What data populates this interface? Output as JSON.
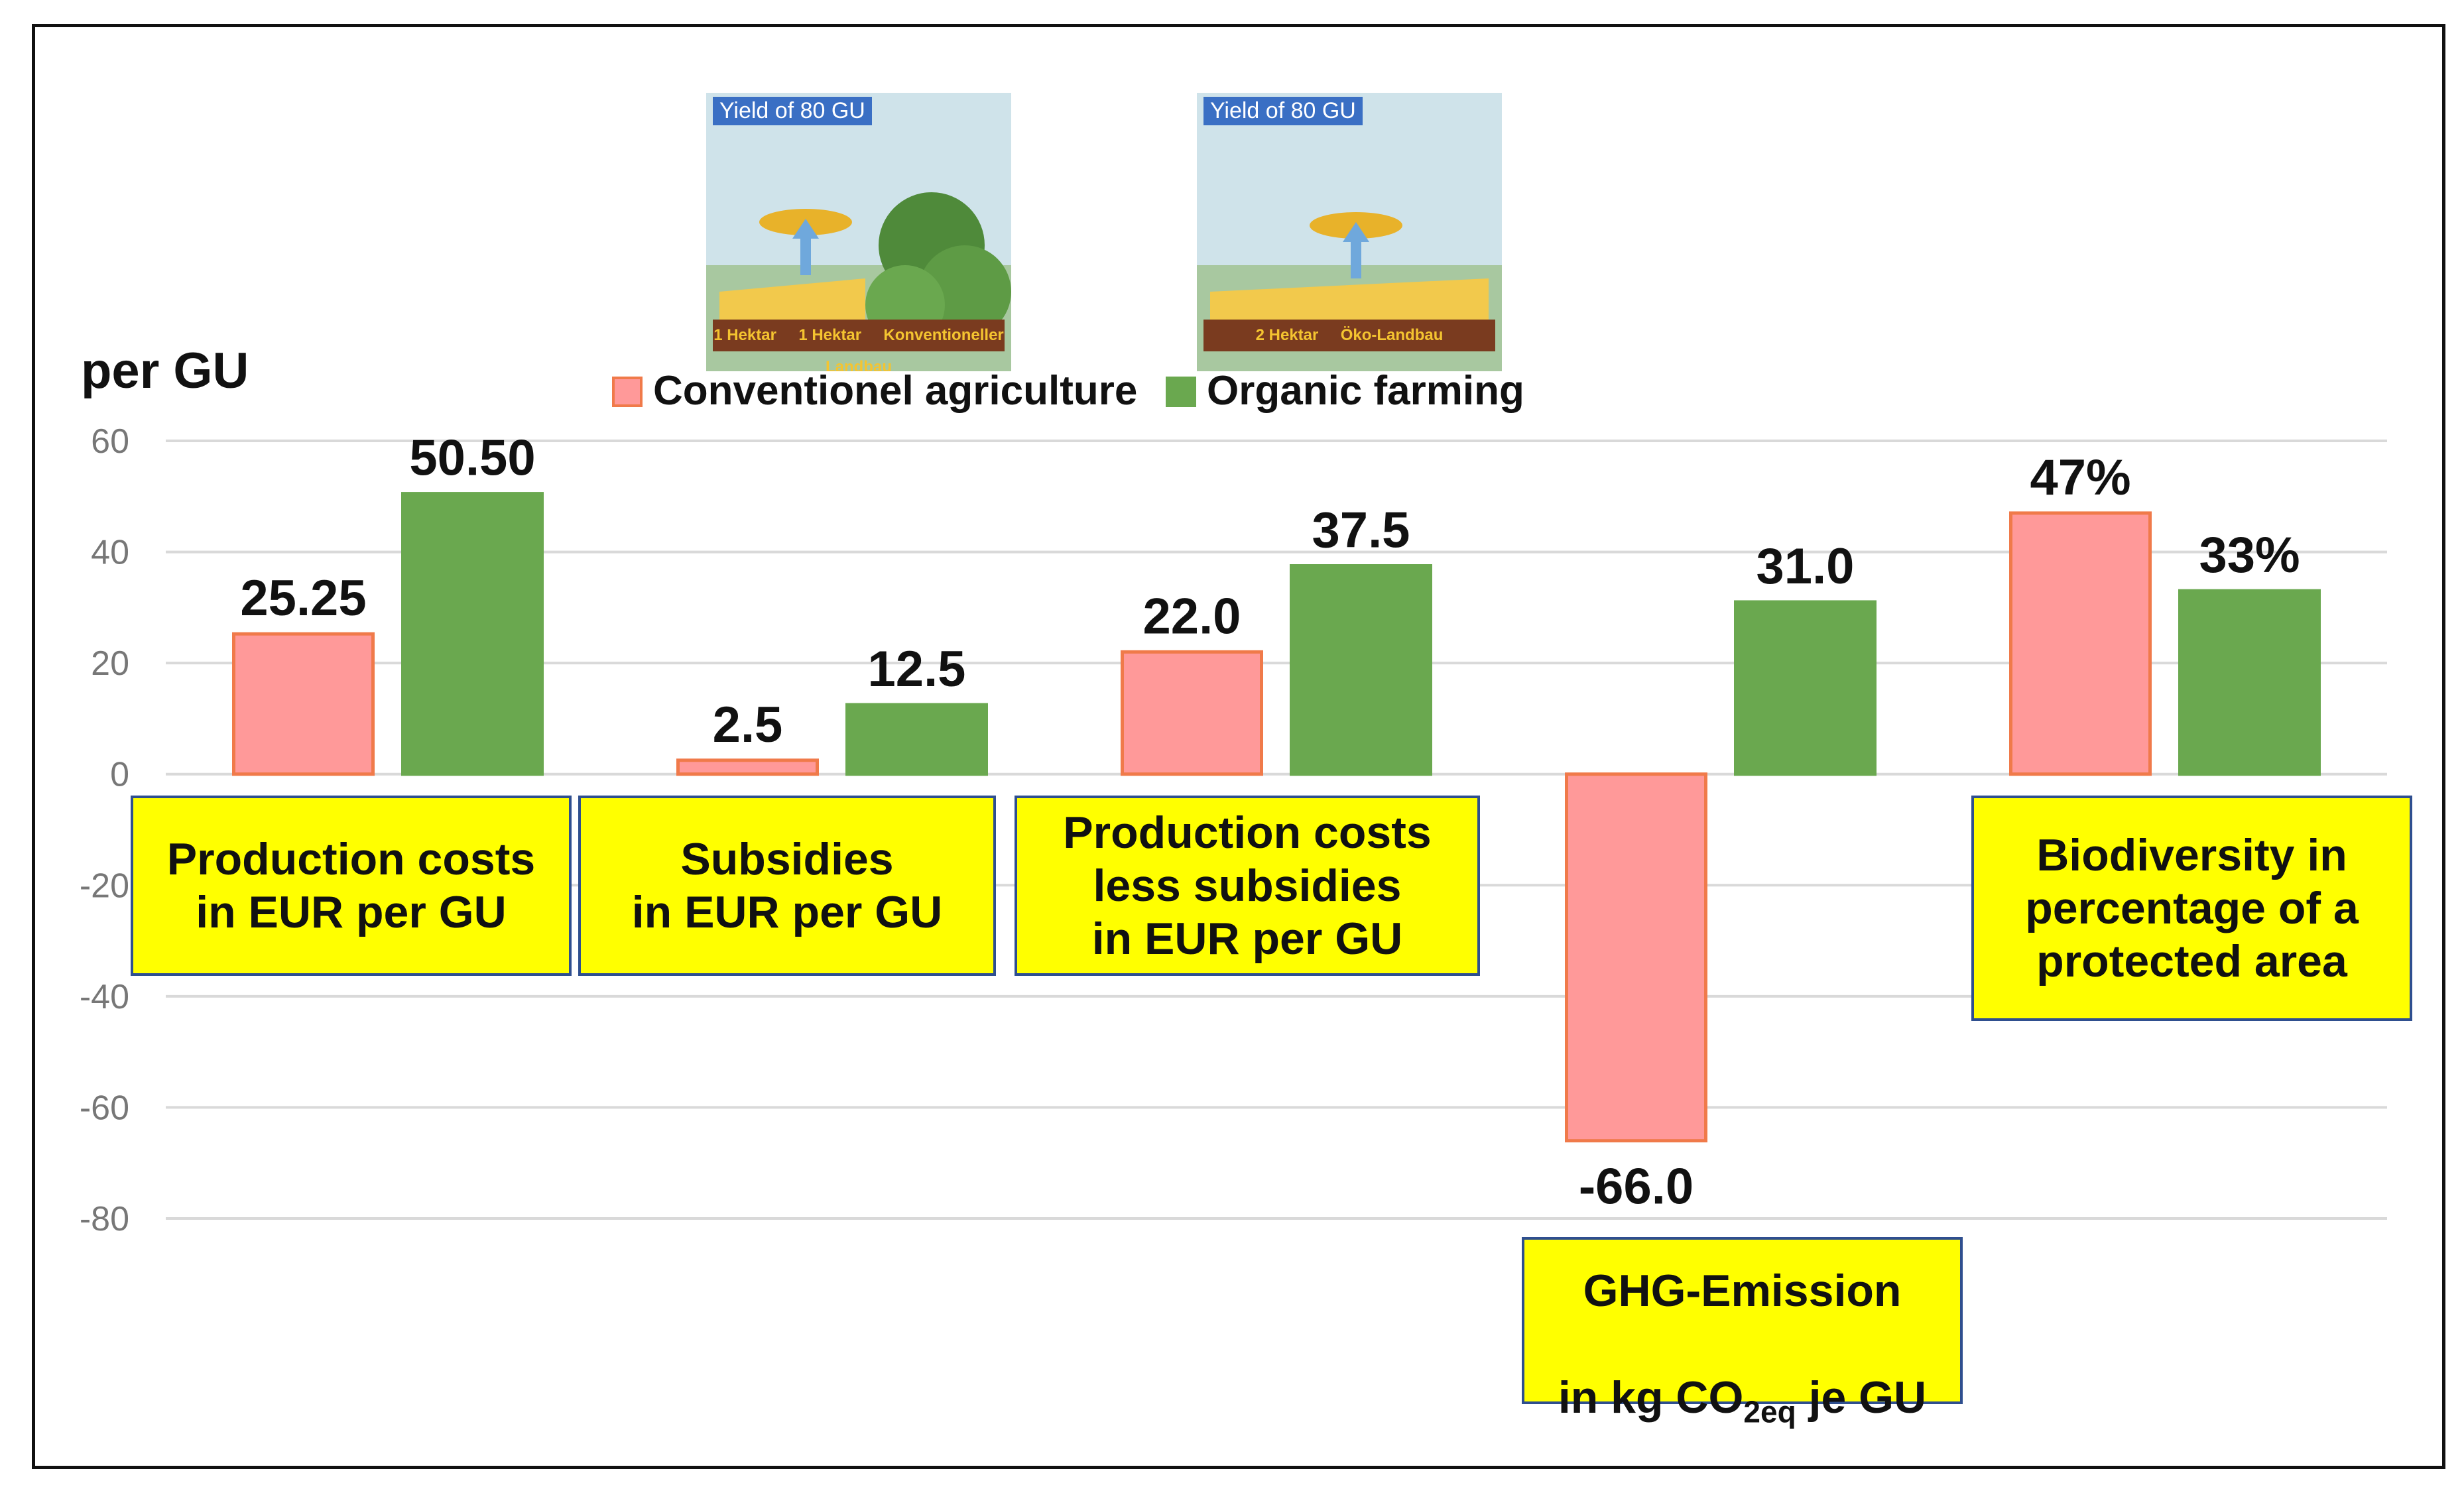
{
  "chart_data": {
    "type": "bar",
    "unit_label": "per GU",
    "ylim": [
      -80,
      60
    ],
    "yticks": [
      60,
      40,
      20,
      0,
      -20,
      -40,
      -60,
      -80
    ],
    "grid": true,
    "legend_position": "top-center",
    "series": [
      {
        "name": "Conventionel agriculture",
        "color": "#ff9999",
        "border": "#f07a4a",
        "values": [
          25.25,
          2.5,
          22.0,
          -66.0,
          47
        ],
        "labels": [
          "25.25",
          "2.5",
          "22.0",
          "-66.0",
          "47%"
        ]
      },
      {
        "name": "Organic farming",
        "color": "#6aa84f",
        "border": "#6aa84f",
        "values": [
          50.5,
          12.5,
          37.5,
          31.0,
          33
        ],
        "labels": [
          "50.50",
          "12.5",
          "37.5",
          "31.0",
          "33%"
        ]
      }
    ],
    "categories": [
      {
        "label": "Production costs\nin EUR per GU"
      },
      {
        "label": "Subsidies\nin EUR per GU"
      },
      {
        "label": "Production costs\nless subsidies\nin EUR per GU"
      },
      {
        "label_line1": "GHG-Emission",
        "label_line2_pre": "in kg CO",
        "label_line2_sub": "2eq",
        "label_line2_post": " je GU"
      },
      {
        "label": "Biodiversity in\npercentage of a\nprotected area"
      }
    ]
  },
  "illustrations": [
    {
      "title": "Yield of 80 GU",
      "tiles": [
        "1 Hektar",
        "1 Hektar"
      ],
      "caption": "Konventioneller Landbau"
    },
    {
      "title": "Yield of 80 GU",
      "tiles": [
        "2 Hektar"
      ],
      "caption": "Öko-Landbau"
    }
  ]
}
